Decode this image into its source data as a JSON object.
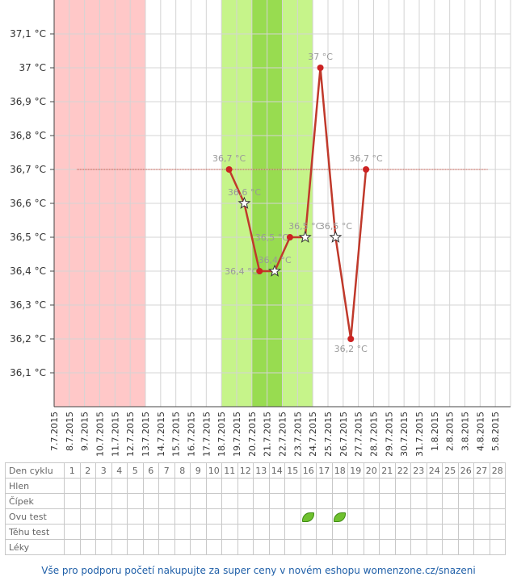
{
  "chart_data": {
    "type": "line",
    "x_dates": [
      "7.7.2015",
      "8.7.2015",
      "9.7.2015",
      "10.7.2015",
      "11.7.2015",
      "12.7.2015",
      "13.7.2015",
      "14.7.2015",
      "15.7.2015",
      "16.7.2015",
      "17.7.2015",
      "18.7.2015",
      "19.7.2015",
      "20.7.2015",
      "21.7.2015",
      "22.7.2015",
      "23.7.2015",
      "24.7.2015",
      "25.7.2015",
      "26.7.2015",
      "27.7.2015",
      "28.7.2015",
      "29.7.2015",
      "30.7.2015",
      "31.7.2015",
      "1.8.2015",
      "2.8.2015",
      "3.8.2015",
      "4.8.2015",
      "5.8.2015"
    ],
    "y_ticks": [
      36.1,
      36.2,
      36.3,
      36.4,
      36.5,
      36.6,
      36.7,
      36.8,
      36.9,
      37.0,
      37.1
    ],
    "y_tick_labels": [
      "36,1 °C",
      "36,2 °C",
      "36,3 °C",
      "36,4 °C",
      "36,5 °C",
      "36,6 °C",
      "36,7 °C",
      "36,8 °C",
      "36,9 °C",
      "37 °C",
      "37,1 °C"
    ],
    "ylim": [
      36.0,
      37.2
    ],
    "grid": true,
    "baseline": {
      "value": 36.7,
      "from": "8.7.2015",
      "to": "4.8.2015",
      "color": "#c0392b"
    },
    "series": [
      {
        "color": "#c0392b",
        "points": [
          {
            "date": "18.7.2015",
            "value": 36.7,
            "label": "36,7 °C",
            "marker": "dot"
          },
          {
            "date": "19.7.2015",
            "value": 36.6,
            "label": "36,6 °C",
            "marker": "star"
          },
          {
            "date": "20.7.2015",
            "value": 36.4,
            "label": "36,4 °C",
            "marker": "dot"
          },
          {
            "date": "21.7.2015",
            "value": 36.4,
            "label": "36,4 °C",
            "marker": "star"
          },
          {
            "date": "22.7.2015",
            "value": 36.5,
            "label": "36,5 °C",
            "marker": "dot"
          },
          {
            "date": "23.7.2015",
            "value": 36.5,
            "label": "36,5 °C",
            "marker": "star"
          },
          {
            "date": "24.7.2015",
            "value": 37.0,
            "label": "37 °C",
            "marker": "dot"
          },
          {
            "date": "25.7.2015",
            "value": 36.5,
            "label": "36,5 °C",
            "marker": "star"
          },
          {
            "date": "26.7.2015",
            "value": 36.2,
            "label": "36,2 °C",
            "marker": "dot"
          },
          {
            "date": "27.7.2015",
            "value": 36.7,
            "label": "36,7 °C",
            "marker": "dot"
          }
        ]
      }
    ],
    "bands": [
      {
        "name": "menstruation",
        "from": "7.7.2015",
        "to": "12.7.2015",
        "color": "#ffc8c8"
      },
      {
        "name": "fertile",
        "from": "18.7.2015",
        "to": "23.7.2015",
        "color": "#c6f48a"
      },
      {
        "name": "ovulation",
        "from": "20.7.2015",
        "to": "21.7.2015",
        "color": "#98dc50"
      }
    ]
  },
  "table": {
    "rows": [
      {
        "label": "Den cyklu",
        "cells": [
          "1",
          "2",
          "3",
          "4",
          "5",
          "6",
          "7",
          "8",
          "9",
          "10",
          "11",
          "12",
          "13",
          "14",
          "15",
          "16",
          "17",
          "18",
          "19",
          "20",
          "21",
          "22",
          "23",
          "24",
          "25",
          "26",
          "27",
          "28"
        ]
      },
      {
        "label": "Hlen",
        "cells": []
      },
      {
        "label": "Čípek",
        "cells": []
      },
      {
        "label": "Ovu test",
        "cells": [],
        "icon_days": [
          16,
          18
        ],
        "icon": "green-leaf-icon",
        "icon_color": "#6fc12f"
      },
      {
        "label": "Těhu test",
        "cells": []
      },
      {
        "label": "Léky",
        "cells": []
      }
    ]
  },
  "footer": {
    "text": "Vše pro podporu početí nakupujte za super ceny v novém eshopu womenzone.cz/snazeni"
  }
}
